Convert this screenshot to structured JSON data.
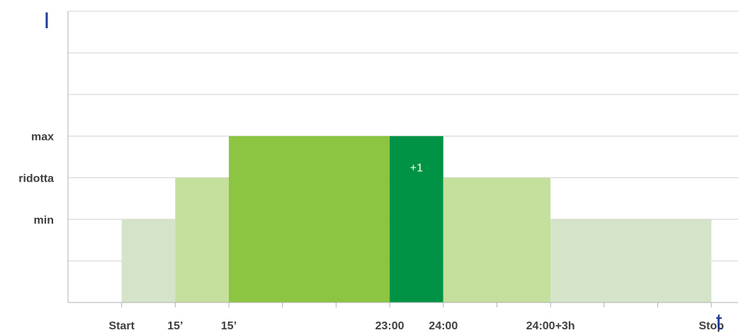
{
  "chart_data": {
    "type": "bar",
    "y_axis_symbol": "I",
    "x_axis_symbol": "t",
    "y_levels": {
      "min": 1,
      "ridotta": 2,
      "max": 3
    },
    "ylim": [
      -1,
      6
    ],
    "y_tick_labels": [
      {
        "label": "max",
        "value": 3
      },
      {
        "label": "ridotta",
        "value": 2
      },
      {
        "label": "min",
        "value": 1
      }
    ],
    "x_ticks": [
      {
        "pos": 1,
        "label": "Start"
      },
      {
        "pos": 2,
        "label": "15’"
      },
      {
        "pos": 3,
        "label": "15’"
      },
      {
        "pos": 4,
        "label": ""
      },
      {
        "pos": 5,
        "label": ""
      },
      {
        "pos": 6,
        "label": "23:00"
      },
      {
        "pos": 7,
        "label": "24:00"
      },
      {
        "pos": 8,
        "label": ""
      },
      {
        "pos": 9,
        "label": "24:00+3h"
      },
      {
        "pos": 10,
        "label": ""
      },
      {
        "pos": 11,
        "label": ""
      },
      {
        "pos": 12,
        "label": "Stop"
      }
    ],
    "xlim": [
      0,
      12.5
    ],
    "segments": [
      {
        "start": 1,
        "end": 2,
        "value": 1,
        "color": "#d5e4c9"
      },
      {
        "start": 2,
        "end": 3,
        "value": 2,
        "color": "#c5df9c"
      },
      {
        "start": 3,
        "end": 6,
        "value": 3,
        "color": "#8bc541"
      },
      {
        "start": 6,
        "end": 7,
        "value": 3,
        "color": "#009245",
        "label": "+1"
      },
      {
        "start": 7,
        "end": 9,
        "value": 2,
        "color": "#c5df9c"
      },
      {
        "start": 9,
        "end": 12,
        "value": 1,
        "color": "#d5e4c9"
      }
    ],
    "grid": true
  }
}
